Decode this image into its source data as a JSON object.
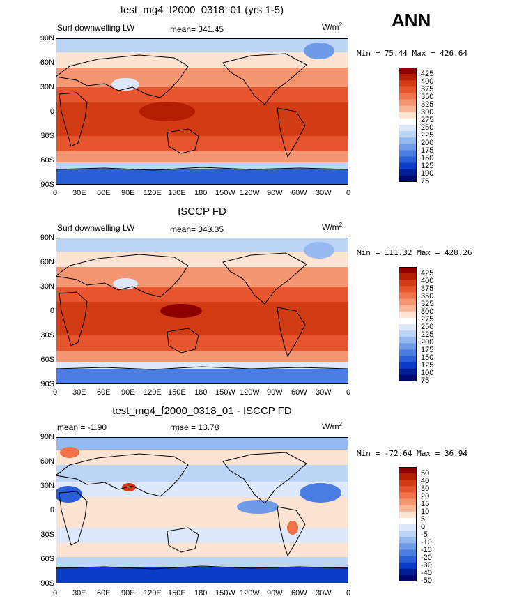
{
  "season": "ANN",
  "panels": [
    {
      "title": "test_mg4_f2000_0318_01 (yrs 1-5)",
      "variable": "Surf downwelling LW",
      "stat1": "mean= 341.45",
      "stat2": "",
      "units": "W/m",
      "units_sup": "2",
      "minmax": "Min =  75.44 Max = 426.64",
      "colorbar": {
        "levels": [
          "425",
          "400",
          "375",
          "350",
          "325",
          "300",
          "275",
          "250",
          "225",
          "200",
          "175",
          "150",
          "125",
          "100",
          "75"
        ],
        "colors": [
          "#8c0000",
          "#b41e00",
          "#d23c14",
          "#e6552d",
          "#f0734b",
          "#f59673",
          "#fab496",
          "#fde4d2",
          "#ffffff",
          "#dde9fb",
          "#bcd4f5",
          "#96b9f0",
          "#6e9be8",
          "#4a7ce1",
          "#285ed6",
          "#0a3cc8",
          "#001e96",
          "#000a6e"
        ]
      }
    },
    {
      "title": "ISCCP FD",
      "variable": "Surf downwelling LW",
      "stat1": "mean= 343.35",
      "stat2": "",
      "units": "W/m",
      "units_sup": "2",
      "minmax": "Min = 111.32 Max = 428.26",
      "colorbar": {
        "levels": [
          "425",
          "400",
          "375",
          "350",
          "325",
          "300",
          "275",
          "250",
          "225",
          "200",
          "175",
          "150",
          "125",
          "100",
          "75"
        ],
        "colors": [
          "#8c0000",
          "#b41e00",
          "#d23c14",
          "#e6552d",
          "#f0734b",
          "#f59673",
          "#fab496",
          "#fde4d2",
          "#ffffff",
          "#dde9fb",
          "#bcd4f5",
          "#96b9f0",
          "#6e9be8",
          "#4a7ce1",
          "#285ed6",
          "#0a3cc8",
          "#001e96",
          "#000a6e"
        ]
      }
    },
    {
      "title": "test_mg4_f2000_0318_01 - ISCCP FD",
      "variable": "",
      "stat1": "mean =   -1.90",
      "stat2": "rmse =   13.78",
      "units": "W/m",
      "units_sup": "2",
      "minmax": "Min = -72.64 Max =  36.94",
      "colorbar": {
        "levels": [
          "50",
          "40",
          "30",
          "20",
          "15",
          "10",
          "5",
          "0",
          "-5",
          "-10",
          "-15",
          "-20",
          "-30",
          "-40",
          "-50"
        ],
        "colors": [
          "#8c0000",
          "#b41e00",
          "#d23c14",
          "#e6552d",
          "#f0734b",
          "#f59673",
          "#fab496",
          "#fde4d2",
          "#ffffff",
          "#dde9fb",
          "#bcd4f5",
          "#96b9f0",
          "#6e9be8",
          "#4a7ce1",
          "#285ed6",
          "#0a3cc8",
          "#001e96",
          "#000a6e"
        ]
      }
    }
  ],
  "axes": {
    "lat_labels": [
      "90N",
      "60N",
      "30N",
      "0",
      "30S",
      "60S",
      "90S"
    ],
    "lon_labels": [
      "0",
      "30E",
      "60E",
      "90E",
      "120E",
      "150E",
      "180",
      "150W",
      "120W",
      "90W",
      "60W",
      "30W",
      "0"
    ]
  }
}
